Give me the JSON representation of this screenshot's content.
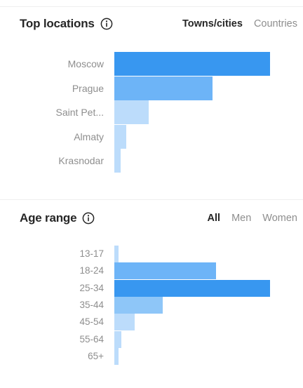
{
  "locations": {
    "title": "Top locations",
    "tabs": [
      {
        "label": "Towns/cities",
        "active": true
      },
      {
        "label": "Countries",
        "active": false
      }
    ],
    "rows": [
      {
        "label": "Moscow",
        "value": 1.0,
        "color": "#3897f0"
      },
      {
        "label": "Prague",
        "value": 0.63,
        "color": "#6db4f7"
      },
      {
        "label": "Saint Pet...",
        "value": 0.22,
        "color": "#bcdcfb"
      },
      {
        "label": "Almaty",
        "value": 0.075,
        "color": "#bcdcfb"
      },
      {
        "label": "Krasnodar",
        "value": 0.04,
        "color": "#bcdcfb"
      }
    ]
  },
  "age": {
    "title": "Age range",
    "tabs": [
      {
        "label": "All",
        "active": true
      },
      {
        "label": "Men",
        "active": false
      },
      {
        "label": "Women",
        "active": false
      }
    ],
    "rows": [
      {
        "label": "13-17",
        "value": 0.022,
        "color": "#bcdcfb"
      },
      {
        "label": "18-24",
        "value": 0.655,
        "color": "#6db4f7"
      },
      {
        "label": "25-34",
        "value": 1.0,
        "color": "#3897f0"
      },
      {
        "label": "35-44",
        "value": 0.31,
        "color": "#8ec6f8"
      },
      {
        "label": "45-54",
        "value": 0.13,
        "color": "#bcdcfb"
      },
      {
        "label": "55-64",
        "value": 0.045,
        "color": "#bcdcfb"
      },
      {
        "label": "65+",
        "value": 0.022,
        "color": "#bcdcfb"
      }
    ]
  }
}
